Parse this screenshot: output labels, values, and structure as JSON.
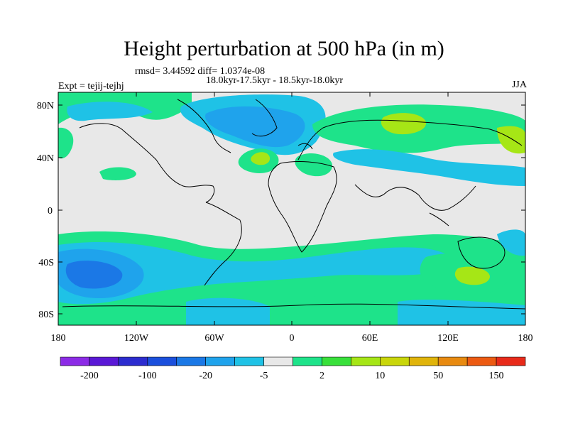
{
  "title": "Height perturbation at 500 hPa (in m)",
  "stats": "rmsd= 3.44592 diff= 1.0374e-08",
  "period": "18.0kyr-17.5kyr - 18.5kyr-18.0kyr",
  "experiment": "Expt = tejij-tejhj",
  "season": "JJA",
  "map": {
    "lat_ticks": [
      "80N",
      "40N",
      "0",
      "40S",
      "80S"
    ],
    "lon_ticks": [
      "180",
      "120W",
      "60W",
      "0",
      "60E",
      "120E",
      "180"
    ],
    "background_color": "#e8e8e8"
  },
  "colorbar": {
    "colors": [
      "#8c2be6",
      "#5a18d6",
      "#2c2ccf",
      "#1b4fdc",
      "#1b78e6",
      "#1fa3ec",
      "#1fc2e6",
      "#e8e8e8",
      "#1ee38a",
      "#38e03a",
      "#a6e616",
      "#c9d60a",
      "#e0b40a",
      "#e88a10",
      "#ec5a12",
      "#e82a1a"
    ],
    "labels": [
      "-200",
      "-100",
      "-20",
      "-5",
      "2",
      "10",
      "50",
      "150"
    ]
  }
}
